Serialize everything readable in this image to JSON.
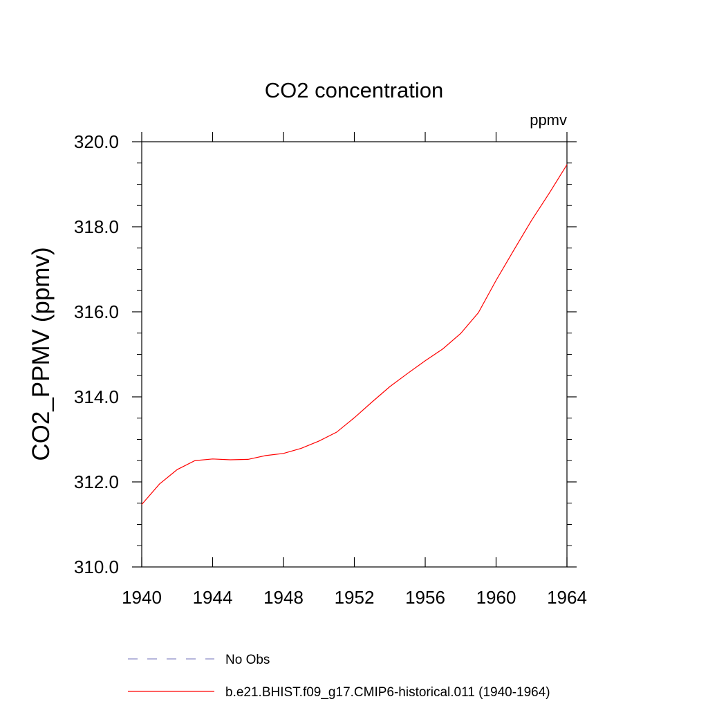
{
  "chart_data": {
    "type": "line",
    "title": "CO2 concentration",
    "units_label": "ppmv",
    "ylabel": "CO2_PPMV  (ppmv)",
    "xlabel": "",
    "xlim": [
      1940,
      1964
    ],
    "ylim": [
      310.0,
      320.0
    ],
    "xticks": [
      1940,
      1944,
      1948,
      1952,
      1956,
      1960,
      1964
    ],
    "xtick_labels": [
      "1940",
      "1944",
      "1948",
      "1952",
      "1956",
      "1960",
      "1964"
    ],
    "yticks": [
      310.0,
      312.0,
      314.0,
      316.0,
      318.0,
      320.0
    ],
    "ytick_labels": [
      "310.0",
      "312.0",
      "314.0",
      "316.0",
      "318.0",
      "320.0"
    ],
    "grid": false,
    "legend_position": "bottom",
    "series": [
      {
        "name": "No Obs",
        "color": "#8c8cc8",
        "dashed": true,
        "x": [],
        "y": []
      },
      {
        "name": "b.e21.BHIST.f09_g17.CMIP6-historical.011 (1940-1964)",
        "color": "#ff0000",
        "dashed": false,
        "x": [
          1940,
          1941,
          1942,
          1943,
          1944,
          1945,
          1946,
          1947,
          1948,
          1949,
          1950,
          1951,
          1952,
          1953,
          1954,
          1955,
          1956,
          1957,
          1958,
          1959,
          1960,
          1961,
          1962,
          1963,
          1964
        ],
        "y": [
          311.47,
          311.95,
          312.29,
          312.5,
          312.54,
          312.52,
          312.53,
          312.62,
          312.67,
          312.79,
          312.96,
          313.17,
          313.51,
          313.88,
          314.24,
          314.55,
          314.85,
          315.13,
          315.49,
          315.98,
          316.74,
          317.45,
          318.15,
          318.79,
          319.46
        ]
      }
    ]
  }
}
